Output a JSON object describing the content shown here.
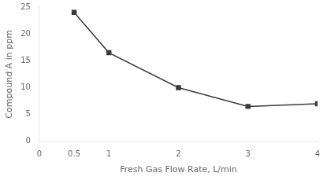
{
  "chart_data": {
    "type": "line",
    "x": [
      0.5,
      1,
      2,
      3,
      4
    ],
    "values": [
      24,
      16.5,
      10,
      6.5,
      7
    ],
    "xlabel": "Fresh Gas Flow Rate, L/min",
    "ylabel": "Compound A in ppm",
    "xlim": [
      0,
      4
    ],
    "ylim": [
      0,
      25
    ],
    "xticks": [
      0,
      0.5,
      1,
      2,
      3,
      4
    ],
    "yticks": [
      0,
      5,
      10,
      15,
      20,
      25
    ],
    "color": "#3a3a3a",
    "marker": "square",
    "grid": false
  }
}
